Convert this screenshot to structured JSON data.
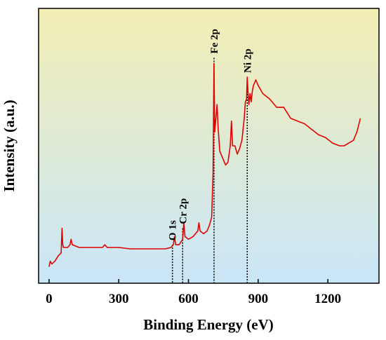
{
  "chart_data": {
    "type": "line",
    "xlabel": "Binding Energy (eV)",
    "ylabel": "Intensity (a.u.)",
    "xlim": [
      -45,
      1420
    ],
    "ylim": [
      0,
      100
    ],
    "xticks": [
      0,
      300,
      600,
      900,
      1200
    ],
    "grid": false,
    "legend": "none",
    "background_gradient": [
      "#f3eeb4",
      "#c9e6f8"
    ],
    "colors": {
      "series": "#e00000",
      "markers": "#000000"
    },
    "series": [
      {
        "values_xy": [
          [
            0,
            6
          ],
          [
            5,
            8
          ],
          [
            12,
            7
          ],
          [
            25,
            8
          ],
          [
            40,
            10
          ],
          [
            52,
            11
          ],
          [
            56,
            20
          ],
          [
            59,
            14
          ],
          [
            62,
            13
          ],
          [
            80,
            13
          ],
          [
            90,
            14
          ],
          [
            95,
            16
          ],
          [
            100,
            14
          ],
          [
            130,
            13
          ],
          [
            180,
            13
          ],
          [
            230,
            13
          ],
          [
            240,
            14
          ],
          [
            250,
            13
          ],
          [
            300,
            13
          ],
          [
            350,
            12.5
          ],
          [
            400,
            12.5
          ],
          [
            450,
            12.5
          ],
          [
            500,
            12.5
          ],
          [
            525,
            13
          ],
          [
            535,
            14
          ],
          [
            540,
            17
          ],
          [
            545,
            14
          ],
          [
            560,
            14
          ],
          [
            575,
            16
          ],
          [
            580,
            22
          ],
          [
            585,
            17
          ],
          [
            600,
            16
          ],
          [
            620,
            17
          ],
          [
            640,
            19
          ],
          [
            645,
            22
          ],
          [
            650,
            19
          ],
          [
            665,
            18
          ],
          [
            680,
            19
          ],
          [
            690,
            21
          ],
          [
            700,
            24
          ],
          [
            706,
            40
          ],
          [
            710,
            80
          ],
          [
            713,
            55
          ],
          [
            718,
            60
          ],
          [
            723,
            65
          ],
          [
            728,
            56
          ],
          [
            735,
            48
          ],
          [
            745,
            46
          ],
          [
            760,
            43
          ],
          [
            770,
            44
          ],
          [
            780,
            50
          ],
          [
            785,
            59
          ],
          [
            790,
            50
          ],
          [
            800,
            50
          ],
          [
            810,
            47
          ],
          [
            820,
            49
          ],
          [
            830,
            52
          ],
          [
            840,
            60
          ],
          [
            845,
            66
          ],
          [
            850,
            67
          ],
          [
            853,
            75
          ],
          [
            856,
            70
          ],
          [
            860,
            65
          ],
          [
            865,
            69
          ],
          [
            870,
            66
          ],
          [
            875,
            70
          ],
          [
            880,
            72
          ],
          [
            890,
            74
          ],
          [
            900,
            72
          ],
          [
            920,
            69
          ],
          [
            950,
            67
          ],
          [
            980,
            64
          ],
          [
            1010,
            64
          ],
          [
            1040,
            60
          ],
          [
            1070,
            59
          ],
          [
            1100,
            58
          ],
          [
            1130,
            56
          ],
          [
            1160,
            54
          ],
          [
            1190,
            53
          ],
          [
            1220,
            51
          ],
          [
            1250,
            50
          ],
          [
            1270,
            50
          ],
          [
            1290,
            51
          ],
          [
            1310,
            52
          ],
          [
            1325,
            55
          ],
          [
            1340,
            60
          ]
        ]
      }
    ],
    "peaks": [
      {
        "label": "O 1s",
        "x": 531,
        "y": 14
      },
      {
        "label": "Cr 2p",
        "x": 575,
        "y": 20
      },
      {
        "label": "Fe 2p",
        "x": 710,
        "y": 82
      },
      {
        "label": "Ni 2p",
        "x": 853,
        "y": 75
      }
    ]
  }
}
